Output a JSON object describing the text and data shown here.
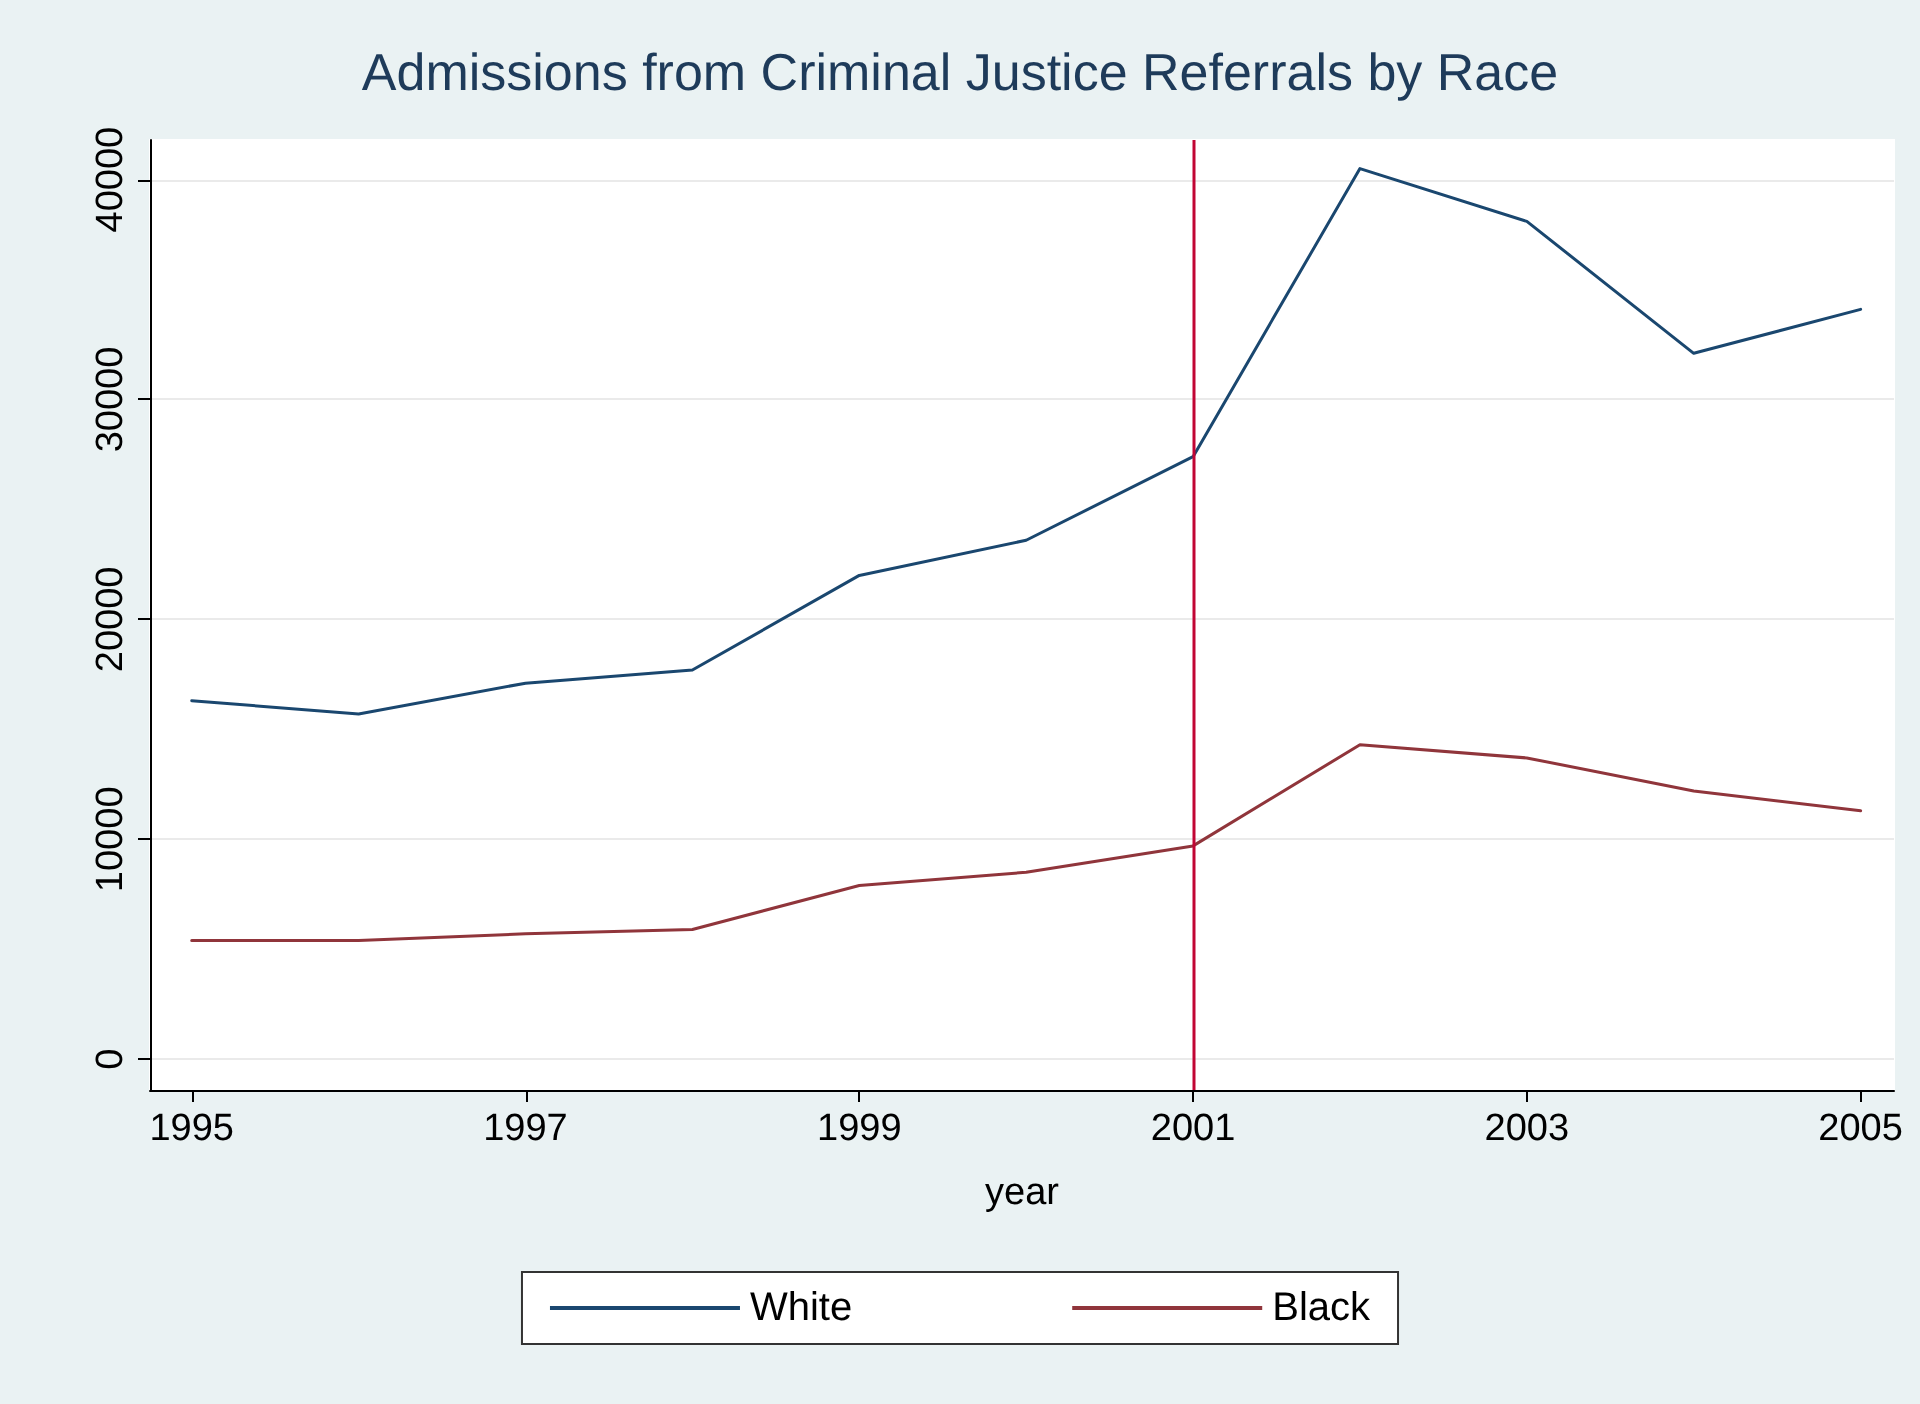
{
  "chart_data": {
    "type": "line",
    "title": "Admissions from Criminal Justice Referrals by Race",
    "xlabel": "year",
    "x": [
      1995,
      1996,
      1997,
      1998,
      1999,
      2000,
      2001,
      2002,
      2003,
      2004,
      2005
    ],
    "series": [
      {
        "name": "White",
        "color": "#1a476f",
        "values": [
          16300,
          15700,
          17100,
          17700,
          22000,
          23600,
          27400,
          40500,
          38100,
          32100,
          34100
        ]
      },
      {
        "name": "Black",
        "color": "#90353b",
        "values": [
          5400,
          5400,
          5700,
          5900,
          7900,
          8500,
          9700,
          14300,
          13700,
          12200,
          11300
        ]
      }
    ],
    "xlim": [
      1994.75,
      2005.2
    ],
    "xticks": [
      1995,
      1997,
      1999,
      2001,
      2003,
      2005
    ],
    "ylim": [
      -1400,
      41800
    ],
    "yticks": [
      0,
      10000,
      20000,
      30000,
      40000
    ],
    "ref_lines": [
      {
        "axis": "x",
        "value": 2001,
        "color": "#c10534"
      }
    ],
    "grid": "y",
    "legend": "bottom",
    "marker": "none",
    "line_style": "solid"
  }
}
